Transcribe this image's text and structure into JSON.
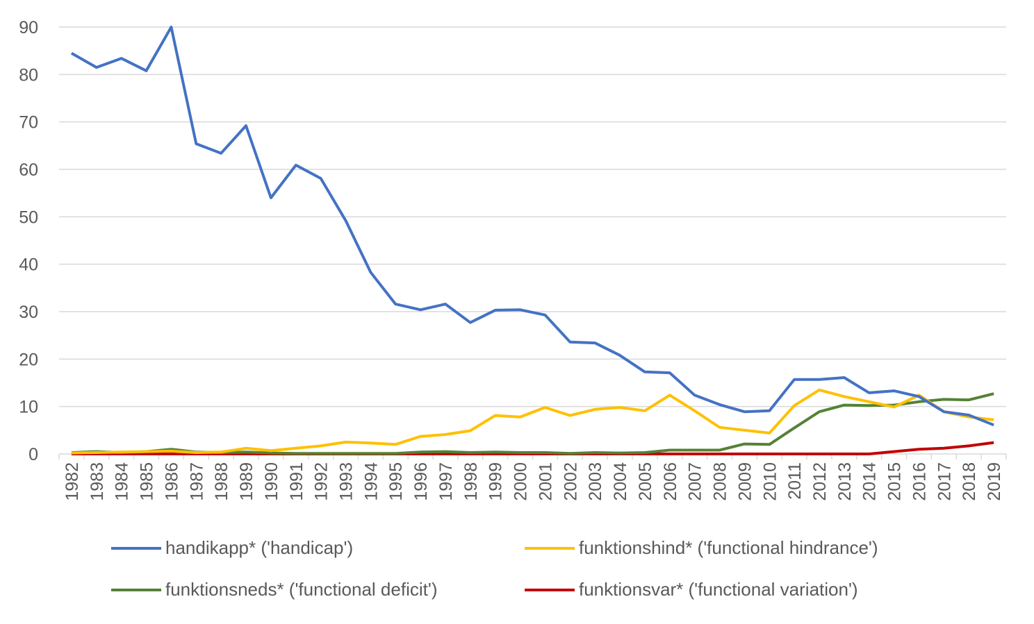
{
  "chart_data": {
    "type": "line",
    "title": "",
    "xlabel": "",
    "ylabel": "",
    "ylim": [
      0,
      90
    ],
    "yticks": [
      0,
      10,
      20,
      30,
      40,
      50,
      60,
      70,
      80,
      90
    ],
    "grid": true,
    "legend_position": "bottom",
    "x": [
      1982,
      1983,
      1984,
      1985,
      1986,
      1987,
      1988,
      1989,
      1990,
      1991,
      1992,
      1993,
      1994,
      1995,
      1996,
      1997,
      1998,
      1999,
      2000,
      2001,
      2002,
      2003,
      2004,
      2005,
      2006,
      2007,
      2008,
      2009,
      2010,
      2011,
      2012,
      2013,
      2014,
      2015,
      2016,
      2017,
      2018,
      2019
    ],
    "series": [
      {
        "name": "handikapp* ('handicap')",
        "color": "#4472C4",
        "values": [
          84.5,
          81.5,
          83.4,
          80.8,
          90,
          65.4,
          63.4,
          69.2,
          54,
          60.9,
          58.1,
          49.2,
          38.3,
          31.6,
          30.4,
          31.6,
          27.7,
          30.3,
          30.4,
          29.3,
          23.6,
          23.4,
          20.8,
          17.3,
          17.1,
          12.4,
          10.4,
          8.9,
          9.1,
          15.7,
          15.7,
          16.1,
          12.9,
          13.3,
          12.1,
          8.9,
          8.2,
          6.1
        ]
      },
      {
        "name": "funktionshind* ('functional hindrance')",
        "color": "#FFC000",
        "values": [
          0.2,
          0.3,
          0.4,
          0.5,
          0.6,
          0.3,
          0.4,
          1.2,
          0.7,
          1.2,
          1.7,
          2.5,
          2.3,
          2.0,
          3.7,
          4.1,
          4.9,
          8.1,
          7.8,
          9.8,
          8.1,
          9.4,
          9.8,
          9.1,
          12.4,
          9.1,
          5.6,
          5.0,
          4.4,
          10.2,
          13.5,
          12.1,
          11.0,
          9.9,
          12.4,
          8.9,
          7.8,
          7.2
        ]
      },
      {
        "name": "funktionsneds* ('functional deficit')",
        "color": "#548235",
        "values": [
          0.3,
          0.5,
          0.3,
          0.5,
          1.0,
          0.4,
          0.3,
          0.4,
          0.2,
          0.1,
          0.1,
          0.1,
          0.1,
          0.1,
          0.4,
          0.5,
          0.3,
          0.4,
          0.3,
          0.3,
          0.1,
          0.3,
          0.2,
          0.3,
          0.8,
          0.8,
          0.8,
          2.1,
          2.0,
          5.5,
          8.9,
          10.3,
          10.2,
          10.3,
          11.0,
          11.5,
          11.4,
          12.7
        ]
      },
      {
        "name": "funktionsvar* ('functional variation')",
        "color": "#C00000",
        "values": [
          0,
          0,
          0,
          0,
          0,
          0,
          0,
          0,
          0,
          0,
          0,
          0,
          0,
          0,
          0,
          0,
          0,
          0,
          0,
          0,
          0,
          0,
          0,
          0,
          0,
          0,
          0,
          0,
          0,
          0,
          0,
          0,
          0,
          0.5,
          1.0,
          1.2,
          1.7,
          2.4
        ]
      }
    ]
  }
}
